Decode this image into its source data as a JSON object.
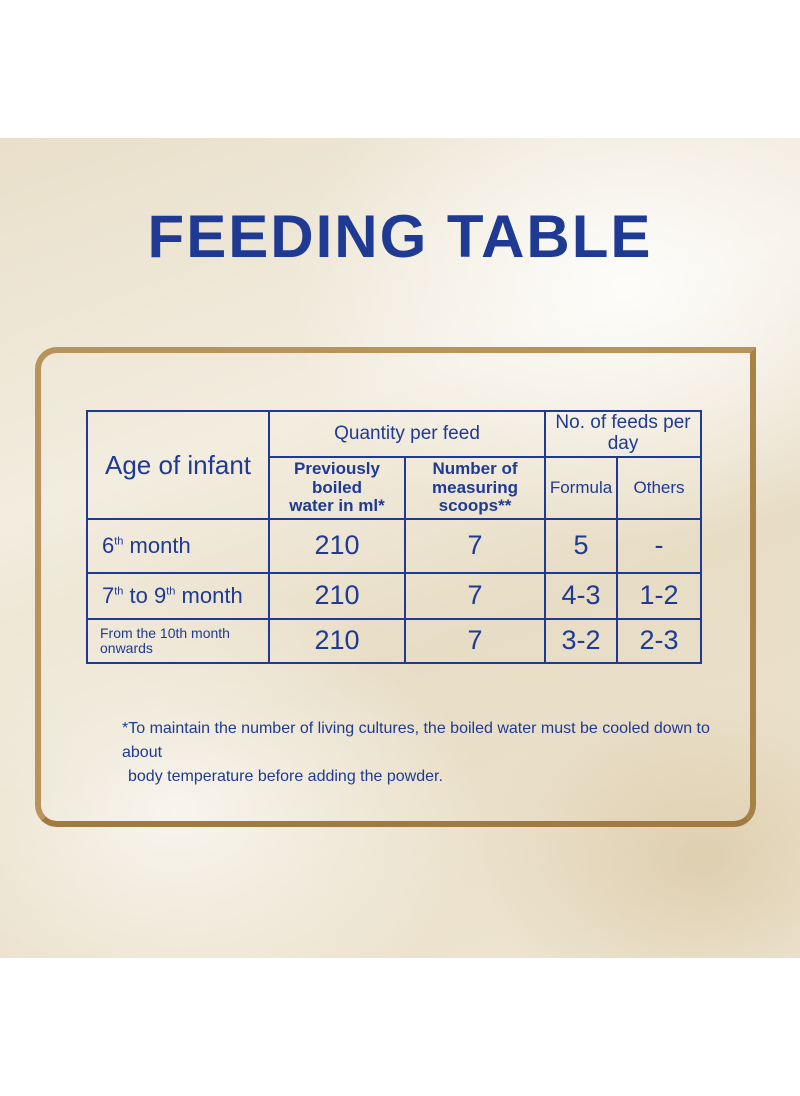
{
  "title": "FEEDING TABLE",
  "table": {
    "header": {
      "age_of_infant": "Age of infant",
      "quantity_per_feed": "Quantity per feed",
      "feeds_per_day": "No. of feeds per day",
      "water_line1": "Previously boiled",
      "water_line2": "water in ml*",
      "scoops_line1": "Number of",
      "scoops_line2": "measuring scoops**",
      "formula": "Formula",
      "others": "Others"
    },
    "rows": [
      {
        "age_num": "6",
        "age_sup": "th",
        "age_rest": " month",
        "water": "210",
        "scoops": "7",
        "formula": "5",
        "others": "-"
      },
      {
        "age_num": "7",
        "age_sup": "th",
        "age_mid": " to 9",
        "age_sup2": "th",
        "age_rest": " month",
        "water": "210",
        "scoops": "7",
        "formula": "4-3",
        "others": "1-2"
      },
      {
        "age_line1": "From the 10th month",
        "age_line2": "onwards",
        "water": "210",
        "scoops": "7",
        "formula": "3-2",
        "others": "2-3"
      }
    ]
  },
  "note": {
    "line1": "*To maintain the number of living cultures, the boiled water must be cooled down to about",
    "line2": "body temperature  before adding the powder."
  }
}
